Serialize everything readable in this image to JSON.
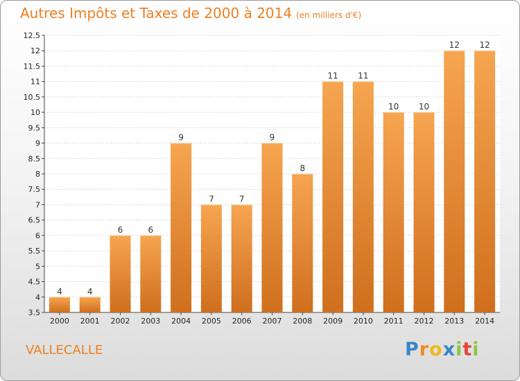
{
  "chart_data": {
    "type": "bar",
    "title": "Autres Impôts et Taxes de 2000 à 2014",
    "unit": "(en milliers d'€)",
    "categories": [
      "2000",
      "2001",
      "2002",
      "2003",
      "2004",
      "2005",
      "2006",
      "2007",
      "2008",
      "2009",
      "2010",
      "2011",
      "2012",
      "2013",
      "2014"
    ],
    "values": [
      4,
      4,
      6,
      6,
      9,
      7,
      7,
      9,
      8,
      11,
      11,
      10,
      10,
      12,
      12
    ],
    "data_labels": [
      "4",
      "4",
      "6",
      "6",
      "9",
      "7",
      "7",
      "9",
      "8",
      "11",
      "11",
      "10",
      "10",
      "12",
      "12"
    ],
    "ylim": [
      3.5,
      12.5
    ],
    "y_ticks": [
      "3.5",
      "4",
      "4.5",
      "5",
      "5.5",
      "6",
      "6.5",
      "7",
      "7.5",
      "8",
      "8.5",
      "9",
      "9.5",
      "10",
      "10.5",
      "11",
      "11.5",
      "12",
      "12.5"
    ],
    "grid": true,
    "bar_color": "#f39c3f"
  },
  "footer": {
    "commune": "VALLECALLE",
    "logo_letters": [
      "P",
      "r",
      "o",
      "x",
      "i",
      "t",
      "i"
    ],
    "logo_colors": [
      "#3a86c8",
      "#f08a1c",
      "#f0b81c",
      "#3a86c8",
      "#8cc63f",
      "#e8423c",
      "#8cc63f"
    ]
  }
}
